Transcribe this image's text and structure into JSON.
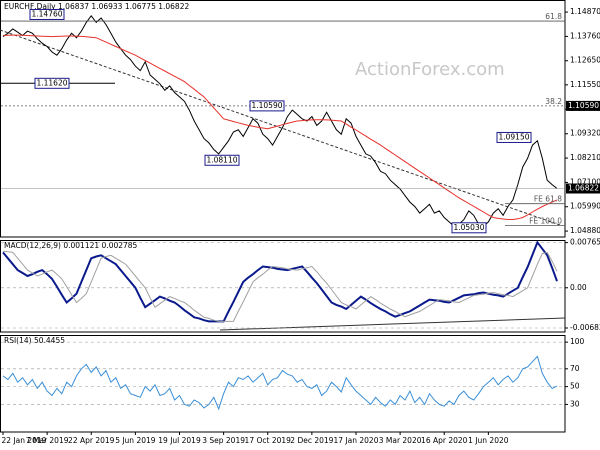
{
  "header": {
    "symbol": "EURCHF,Daily",
    "open": 1.06837,
    "high": 1.06933,
    "low": 1.06775
  },
  "watermark": "ActionForex.com",
  "chart_data": [
    {
      "type": "line",
      "series": [
        {
          "color": "#000000",
          "values": [
            1.1375,
            1.139,
            1.141,
            1.1395,
            1.138,
            1.14,
            1.139,
            1.1365,
            1.1345,
            1.133,
            1.1305,
            1.129,
            1.132,
            1.136,
            1.139,
            1.137,
            1.14,
            1.144,
            1.147,
            1.144,
            1.146,
            1.143,
            1.139,
            1.135,
            1.132,
            1.129,
            1.127,
            1.124,
            1.122,
            1.126,
            1.12,
            1.118,
            1.116,
            1.113,
            1.115,
            1.112,
            1.11,
            1.108,
            1.104,
            1.099,
            1.095,
            1.091,
            1.089,
            1.086,
            1.084,
            1.087,
            1.09,
            1.094,
            1.095,
            1.092,
            1.096,
            1.1,
            1.098,
            1.093,
            1.091,
            1.088,
            1.092,
            1.096,
            1.101,
            1.104,
            1.102,
            1.1,
            1.099,
            1.101,
            1.097,
            1.099,
            1.103,
            1.099,
            1.095,
            1.093,
            1.1,
            1.098,
            1.092,
            1.088,
            1.084,
            1.083,
            1.08,
            1.076,
            1.075,
            1.072,
            1.07,
            1.068,
            1.065,
            1.062,
            1.06,
            1.057,
            1.059,
            1.061,
            1.057,
            1.058,
            1.055,
            1.053,
            1.051,
            1.052,
            1.054,
            1.058,
            1.056,
            1.052,
            1.051,
            1.053,
            1.057,
            1.059,
            1.056,
            1.06,
            1.063,
            1.07,
            1.078,
            1.082,
            1.088,
            1.09,
            1.082,
            1.072,
            1.07,
            1.06822
          ]
        },
        {
          "color": "#e8302a",
          "values": [
            1.138,
            1.1381,
            1.1382,
            1.1382,
            1.1381,
            1.138,
            1.1379,
            1.1378,
            1.1377,
            1.1376,
            1.1375,
            1.1376,
            1.1377,
            1.1378,
            1.1378,
            1.1377,
            1.1376,
            1.1374,
            1.1372,
            1.137,
            1.136,
            1.135,
            1.134,
            1.133,
            1.132,
            1.131,
            1.13,
            1.129,
            1.1278,
            1.1266,
            1.1254,
            1.1242,
            1.123,
            1.1218,
            1.1206,
            1.1194,
            1.1182,
            1.117,
            1.1152,
            1.1135,
            1.1117,
            1.11,
            1.1075,
            1.105,
            1.1025,
            1.1,
            1.0994,
            1.0988,
            1.0982,
            1.0976,
            1.097,
            1.0966,
            1.0962,
            1.0958,
            1.0955,
            1.0961,
            1.0967,
            1.0973,
            1.0979,
            1.0985,
            1.099,
            1.0992,
            1.0994,
            1.0995,
            1.0996,
            1.0996,
            1.0995,
            1.0994,
            1.0992,
            1.099,
            1.0976,
            1.0962,
            1.0949,
            1.0935,
            1.0921,
            1.0907,
            1.0894,
            1.088,
            1.0865,
            1.085,
            1.0835,
            1.082,
            1.0805,
            1.079,
            1.0775,
            1.076,
            1.0745,
            1.073,
            1.0715,
            1.07,
            1.0685,
            1.067,
            1.0655,
            1.064,
            1.0627,
            1.0614,
            1.0601,
            1.0588,
            1.0575,
            1.0562,
            1.055,
            1.0546,
            1.0543,
            1.0541,
            1.0541,
            1.0544,
            1.055,
            1.0562,
            1.0575,
            1.0588,
            1.06,
            1.061,
            1.062,
            1.063
          ]
        }
      ],
      "ylim": [
        1.0461,
        1.1542
      ],
      "yticks": [
        {
          "value": 1.0488,
          "label": "1.04880"
        },
        {
          "value": 1.0599,
          "label": "1.05990"
        },
        {
          "value": 1.071,
          "label": "1.07100"
        },
        {
          "value": 1.0821,
          "label": "1.08210"
        },
        {
          "value": 1.0932,
          "label": "1.09320"
        },
        {
          "value": 1.1044,
          "label": "1.10440"
        },
        {
          "value": 1.1155,
          "label": "1.11550"
        },
        {
          "value": 1.1265,
          "label": "1.12650"
        },
        {
          "value": 1.1376,
          "label": "1.13760"
        },
        {
          "value": 1.1487,
          "label": "1.14870"
        }
      ],
      "annotations": [
        {
          "label": "61.8",
          "value": 1.1446
        },
        {
          "label": "38.2",
          "value": 1.1059
        },
        {
          "label": "FE 61.8",
          "value": 1.0613
        },
        {
          "label": "FE 100.0",
          "value": 1.0514
        }
      ],
      "point_labels": [
        {
          "value": 1.1476,
          "label": "1.14760"
        },
        {
          "value": 1.1162,
          "label": "1.11620"
        },
        {
          "value": 1.1059,
          "label": "1.10590"
        },
        {
          "value": 1.0811,
          "label": "1.08110"
        },
        {
          "value": 1.0915,
          "label": "1.09150"
        },
        {
          "value": 1.0503,
          "label": "1.05030"
        }
      ]
    },
    {
      "type": "line",
      "title": "MACD(12,26,9)",
      "series": [
        {
          "color": "#0a1a8c",
          "values": [
            0.006,
            0.005,
            0.004,
            0.003,
            0.0025,
            0.002,
            0.0023,
            0.0027,
            0.003,
            0.0023,
            0.0015,
            0.0002,
            -0.0012,
            -0.0025,
            -0.0018,
            -0.001,
            0.001,
            0.003,
            0.005,
            0.0053,
            0.0055,
            0.005,
            0.0045,
            0.004,
            0.003,
            0.002,
            0.001,
            0,
            -0.0017,
            -0.0033,
            -0.0027,
            -0.0021,
            -0.0015,
            -0.0018,
            -0.0022,
            -0.0025,
            -0.0031,
            -0.0038,
            -0.0044,
            -0.005,
            -0.0052,
            -0.0055,
            -0.0057,
            -0.0057,
            -0.0057,
            -0.0057,
            -0.004,
            -0.0024,
            -0.0007,
            0.001,
            0.0017,
            0.0023,
            0.003,
            0.0036,
            0.0035,
            0.0034,
            0.0032,
            0.0031,
            0.003,
            0.0032,
            0.0034,
            0.0036,
            0.0027,
            0.0017,
            0.0008,
            -0.0003,
            -0.0014,
            -0.0025,
            -0.0029,
            -0.0032,
            -0.0036,
            -0.0029,
            -0.0022,
            -0.0015,
            -0.002,
            -0.0026,
            -0.0031,
            -0.0036,
            -0.004,
            -0.0045,
            -0.0049,
            -0.0046,
            -0.0043,
            -0.004,
            -0.0035,
            -0.003,
            -0.0025,
            -0.002,
            -0.0021,
            -0.0022,
            -0.0024,
            -0.0025,
            -0.0021,
            -0.0017,
            -0.0013,
            -0.0012,
            -0.0011,
            -0.0009,
            -0.0008,
            -0.001,
            -0.0012,
            -0.0013,
            -0.0015,
            -0.001,
            -0.0005,
            0,
            0.0018,
            0.0035,
            0.0056,
            0.0077,
            0.0066,
            0.0055,
            0.0034,
            0.001121
          ]
        },
        {
          "color": "#a0a0a0",
          "values": [
            0.0062,
            0.0061,
            0.006,
            0.005,
            0.004,
            0.003,
            0.0025,
            0.002,
            0.0023,
            0.0027,
            0.003,
            0.0023,
            0.0015,
            0.0002,
            -0.0012,
            -0.0025,
            -0.0018,
            -0.001,
            0.001,
            0.003,
            0.005,
            0.0053,
            0.0055,
            0.005,
            0.0045,
            0.004,
            0.003,
            0.002,
            0.001,
            0,
            -0.0017,
            -0.0033,
            -0.0027,
            -0.0021,
            -0.0015,
            -0.0018,
            -0.0022,
            -0.0025,
            -0.0031,
            -0.0038,
            -0.0044,
            -0.005,
            -0.0052,
            -0.0055,
            -0.0057,
            -0.0057,
            -0.0057,
            -0.0057,
            -0.004,
            -0.0024,
            -0.0007,
            0.001,
            0.0017,
            0.0023,
            0.003,
            0.0036,
            0.0035,
            0.0034,
            0.0032,
            0.0031,
            0.003,
            0.0032,
            0.0034,
            0.0036,
            0.0027,
            0.0017,
            0.0008,
            -0.0003,
            -0.0014,
            -0.0025,
            -0.0029,
            -0.0032,
            -0.0036,
            -0.0029,
            -0.0022,
            -0.0015,
            -0.002,
            -0.0026,
            -0.0031,
            -0.0036,
            -0.004,
            -0.0045,
            -0.0049,
            -0.0046,
            -0.0043,
            -0.004,
            -0.0035,
            -0.003,
            -0.0025,
            -0.002,
            -0.0021,
            -0.0022,
            -0.0024,
            -0.0025,
            -0.0021,
            -0.0017,
            -0.0013,
            -0.0012,
            -0.0011,
            -0.0009,
            -0.0008,
            -0.001,
            -0.0012,
            -0.0013,
            -0.0015,
            -0.001,
            -0.0005,
            0,
            0.002,
            0.004,
            0.0058,
            0.006,
            0.0045,
            0.002785
          ]
        }
      ],
      "ylim": [
        -0.0075,
        0.0081
      ],
      "yticks": [
        0.007655,
        {
          "value": 0,
          "label": "0.00"
        },
        -0.006822
      ],
      "grid": true
    },
    {
      "type": "line",
      "title": "RSI(14)",
      "categories": [
        "22 Jan 2019",
        null,
        null,
        null,
        null,
        null,
        null,
        null,
        null,
        "7 Mar 2019",
        null,
        null,
        null,
        null,
        null,
        null,
        null,
        null,
        "22 Apr 2019",
        null,
        null,
        null,
        null,
        null,
        null,
        null,
        null,
        "5 Jun 2019",
        null,
        null,
        null,
        null,
        null,
        null,
        null,
        null,
        "19 Jul 2019",
        null,
        null,
        null,
        null,
        null,
        null,
        null,
        null,
        "3 Sep 2019",
        null,
        null,
        null,
        null,
        null,
        null,
        null,
        null,
        "17 Oct 2019",
        null,
        null,
        null,
        null,
        null,
        null,
        null,
        null,
        "2 Dec 2019",
        null,
        null,
        null,
        null,
        null,
        null,
        null,
        null,
        "17 Jan 2020",
        null,
        null,
        null,
        null,
        null,
        null,
        null,
        null,
        "3 Mar 2020",
        null,
        null,
        null,
        null,
        null,
        null,
        null,
        null,
        "16 Apr 2020",
        null,
        null,
        null,
        null,
        null,
        null,
        null,
        null,
        "1 Jun 2020",
        null,
        null,
        null,
        null,
        null,
        null,
        null,
        null,
        null,
        null,
        null,
        null,
        null,
        null
      ],
      "series": [
        {
          "color": "#3a8fd8",
          "values": [
            62,
            58,
            65,
            55,
            60,
            52,
            58,
            48,
            55,
            45,
            40,
            48,
            42,
            55,
            50,
            62,
            70,
            75,
            66,
            72,
            62,
            68,
            55,
            60,
            48,
            52,
            42,
            40,
            38,
            50,
            45,
            52,
            40,
            42,
            48,
            35,
            40,
            30,
            28,
            35,
            32,
            26,
            30,
            38,
            25,
            42,
            55,
            50,
            60,
            58,
            62,
            55,
            60,
            65,
            52,
            58,
            60,
            68,
            64,
            62,
            55,
            58,
            50,
            48,
            52,
            40,
            45,
            55,
            50,
            44,
            60,
            52,
            45,
            40,
            35,
            30,
            38,
            32,
            28,
            35,
            30,
            40,
            35,
            45,
            32,
            38,
            30,
            42,
            35,
            30,
            28,
            34,
            30,
            40,
            45,
            38,
            35,
            42,
            50,
            55,
            60,
            52,
            58,
            62,
            55,
            60,
            70,
            72,
            78,
            84,
            65,
            55,
            48,
            50.4455
          ]
        }
      ],
      "ylim": [
        -1,
        108
      ],
      "yticks": [
        100,
        70,
        50,
        30
      ],
      "grid": true
    }
  ]
}
